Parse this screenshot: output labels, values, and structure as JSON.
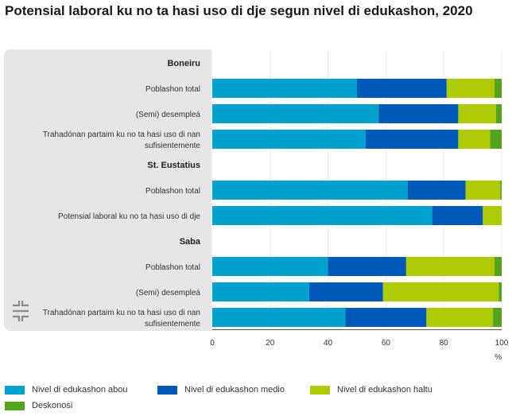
{
  "title": "Potensial laboral ku no ta hasi uso di dje segun nivel di edukashon, 2020",
  "colors": {
    "abou": "#00a1cd",
    "medio": "#0058b8",
    "haltu": "#afcb05",
    "deskonosi": "#53a31d",
    "panel": "#e6e6e6"
  },
  "chart_data": {
    "type": "bar",
    "orientation": "horizontal",
    "stacked": true,
    "title": "Potensial laboral ku no ta hasi uso di dje segun nivel di edukashon, 2020",
    "xlabel": "%",
    "xlim": [
      0,
      100
    ],
    "xticks": [
      "0",
      "20",
      "40",
      "60",
      "80",
      "100"
    ],
    "series": [
      {
        "name": "Nivel di edukashon abou",
        "color": "#00a1cd"
      },
      {
        "name": "Nivel di edukashon medio",
        "color": "#0058b8"
      },
      {
        "name": "Nivel di edukashon haltu",
        "color": "#afcb05"
      },
      {
        "name": "Deskonosi",
        "color": "#53a31d"
      }
    ],
    "rows": [
      {
        "kind": "group",
        "label": "Boneiru"
      },
      {
        "kind": "bar",
        "label": [
          "Poblashon total"
        ],
        "values": [
          50,
          31,
          16.5,
          2.5
        ]
      },
      {
        "kind": "bar",
        "label": [
          "(Semi) desempleá"
        ],
        "values": [
          57.5,
          27.5,
          13,
          2
        ]
      },
      {
        "kind": "bar",
        "label": [
          "Trahadónan partaim ku no ta hasi uso di nan",
          "sufisientemente"
        ],
        "values": [
          53,
          32,
          11,
          4
        ]
      },
      {
        "kind": "group",
        "label": "St. Eustatius"
      },
      {
        "kind": "bar",
        "label": [
          "Poblashon total"
        ],
        "values": [
          67.5,
          20,
          12,
          0.5
        ]
      },
      {
        "kind": "bar",
        "label": [
          "Potensial laboral ku no ta hasi uso di dje"
        ],
        "values": [
          76,
          17.5,
          6.5,
          0
        ]
      },
      {
        "kind": "group",
        "label": "Saba"
      },
      {
        "kind": "bar",
        "label": [
          "Poblashon total"
        ],
        "values": [
          40,
          27,
          30.5,
          2.5
        ]
      },
      {
        "kind": "bar",
        "label": [
          "(Semi) desempleá"
        ],
        "values": [
          33.5,
          25.5,
          40,
          1
        ]
      },
      {
        "kind": "bar",
        "label": [
          "Trahadónan partaim ku no ta hasi uso di nan",
          "sufisientemente"
        ],
        "values": [
          46,
          28,
          23,
          3
        ]
      }
    ]
  }
}
